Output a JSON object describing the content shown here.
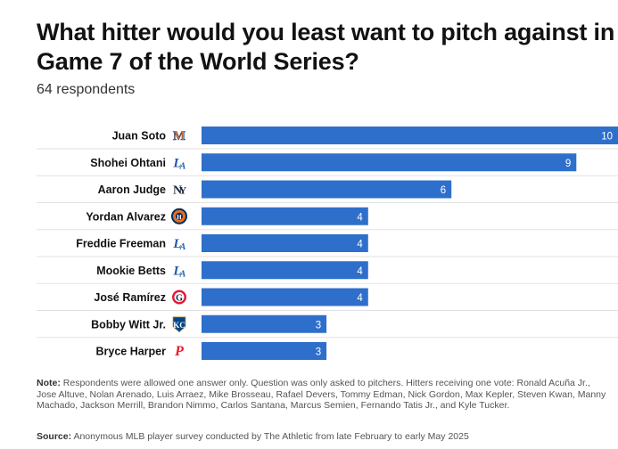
{
  "chart_data": {
    "type": "bar",
    "orientation": "horizontal",
    "title": "What hitter would you least want to pitch against in Game 7 of the World Series?",
    "subtitle": "64 respondents",
    "categories": [
      "Juan Soto",
      "Shohei Ohtani",
      "Aaron Judge",
      "Yordan Alvarez",
      "Freddie Freeman",
      "Mookie Betts",
      "José Ramírez",
      "Bobby Witt Jr.",
      "Bryce Harper"
    ],
    "values": [
      10,
      9,
      6,
      4,
      4,
      4,
      4,
      3,
      3
    ],
    "team_logos": [
      "mets-logo",
      "dodgers-logo",
      "yankees-logo",
      "astros-logo",
      "dodgers-logo",
      "dodgers-logo",
      "guardians-logo",
      "royals-logo",
      "phillies-logo"
    ],
    "xlim": [
      0,
      10
    ],
    "bar_color": "#2f6fcc",
    "grid": false
  },
  "note_label": "Note:",
  "note_text": "Respondents were allowed one answer only. Question was only asked to pitchers. Hitters receiving one vote: Ronald Acuña Jr., Jose Altuve, Nolan Arenado, Luis Arraez, Mike Brosseau, Rafael Devers, Tommy Edman, Nick Gordon, Max Kepler, Steven Kwan, Manny Machado, Jackson Merrill, Brandon Nimmo, Carlos Santana, Marcus Semien, Fernando Tatis Jr., and Kyle Tucker.",
  "source_label": "Source:",
  "source_text": "Anonymous MLB player survey conducted by The Athletic from late February to early May 2025"
}
